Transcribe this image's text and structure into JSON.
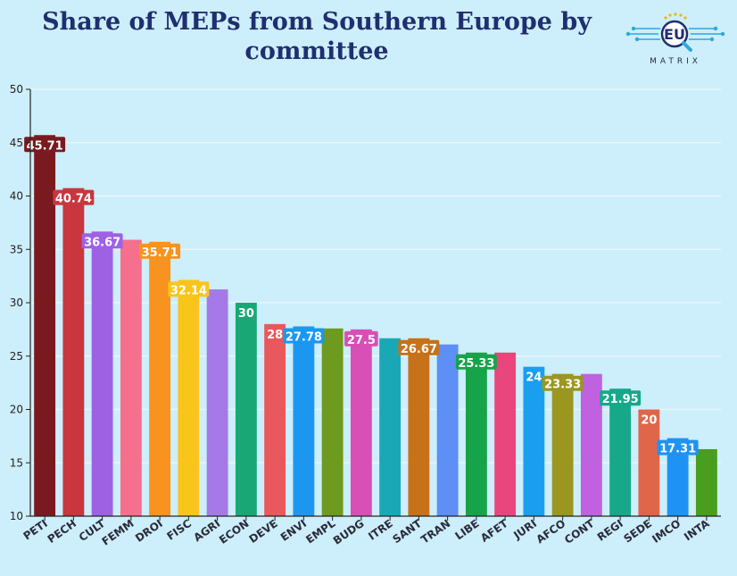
{
  "title": "Share of MEPs from Southern Europe by committee",
  "logo": {
    "text": "EU",
    "subtitle": "MATRIX",
    "icon": "eu-matrix-magnifier-logo"
  },
  "colors": {
    "background": "#cdeefb",
    "title": "#1f2f6f",
    "grid": "#e8f6fc",
    "axis": "#222222"
  },
  "chart_data": {
    "type": "bar",
    "title": "Share of MEPs from Southern Europe by committee",
    "xlabel": "",
    "ylabel": "",
    "ylim": [
      10,
      50
    ],
    "yticks": [
      10,
      15,
      20,
      25,
      30,
      35,
      40,
      45,
      50
    ],
    "grid": true,
    "categories": [
      "PETI",
      "PECH",
      "CULT",
      "FEMM",
      "DROI",
      "FISC",
      "AGRI",
      "ECON",
      "DEVE",
      "ENVI",
      "EMPL",
      "BUDG",
      "ITRE",
      "SANT",
      "TRAN",
      "LIBE",
      "AFET",
      "JURI",
      "AFCO",
      "CONT",
      "REGI",
      "SEDE",
      "IMCO",
      "INTA"
    ],
    "values": [
      45.71,
      40.74,
      36.67,
      35.9,
      35.71,
      32.14,
      31.25,
      30,
      28,
      27.78,
      27.59,
      27.5,
      26.67,
      26.67,
      26.09,
      25.33,
      25.33,
      24,
      23.33,
      23.33,
      21.95,
      20,
      17.31,
      16.28
    ],
    "data_labels": [
      "45.71",
      "40.74",
      "36.67",
      "",
      "35.71",
      "32.14",
      "",
      "30",
      "28",
      "27.78",
      "",
      "27.5",
      "",
      "26.67",
      "",
      "25.33",
      "",
      "24",
      "23.33",
      "",
      "21.95",
      "20",
      "17.31",
      ""
    ],
    "colors": [
      "#7a1a1e",
      "#c9363e",
      "#9e61e3",
      "#f5708d",
      "#f7931e",
      "#f9c51b",
      "#a57ae8",
      "#1aa776",
      "#e8585c",
      "#1b97f2",
      "#6e9a1f",
      "#d84fb6",
      "#1aa8b6",
      "#c77119",
      "#5d8ff5",
      "#16a34a",
      "#e8467c",
      "#1a9ff0",
      "#9a9620",
      "#c061e0",
      "#17a88a",
      "#e0664a",
      "#1e93f5",
      "#4a9e1e"
    ]
  }
}
